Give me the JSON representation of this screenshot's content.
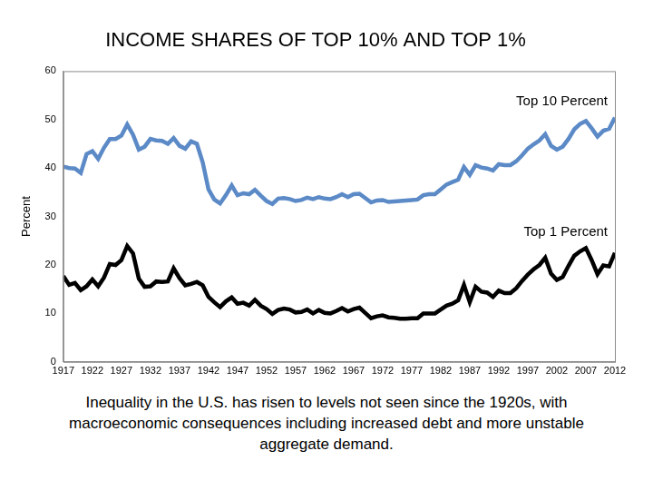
{
  "chart_data": {
    "type": "line",
    "title": "INCOME SHARES OF TOP 10% AND TOP 1%",
    "y_label": "Percent",
    "caption": "Inequality in the U.S. has risen to levels not seen since the 1920s, with macroeconomic consequences including increased debt and more unstable aggregate demand.",
    "x": [
      1917,
      1918,
      1919,
      1920,
      1921,
      1922,
      1923,
      1924,
      1925,
      1926,
      1927,
      1928,
      1929,
      1930,
      1931,
      1932,
      1933,
      1934,
      1935,
      1936,
      1937,
      1938,
      1939,
      1940,
      1941,
      1942,
      1943,
      1944,
      1945,
      1946,
      1947,
      1948,
      1949,
      1950,
      1951,
      1952,
      1953,
      1954,
      1955,
      1956,
      1957,
      1958,
      1959,
      1960,
      1961,
      1962,
      1963,
      1964,
      1965,
      1966,
      1967,
      1968,
      1969,
      1970,
      1971,
      1972,
      1973,
      1974,
      1975,
      1976,
      1977,
      1978,
      1979,
      1980,
      1981,
      1982,
      1983,
      1984,
      1985,
      1986,
      1987,
      1988,
      1989,
      1990,
      1991,
      1992,
      1993,
      1994,
      1995,
      1996,
      1997,
      1998,
      1999,
      2000,
      2001,
      2002,
      2003,
      2004,
      2005,
      2006,
      2007,
      2008,
      2009,
      2010,
      2011,
      2012
    ],
    "series": [
      {
        "name": "Top 10 Percent",
        "color": "#5b8ac7",
        "values": [
          40.3,
          40.0,
          39.9,
          39.0,
          42.9,
          43.5,
          41.9,
          44.2,
          46.0,
          46.0,
          46.7,
          49.0,
          46.9,
          43.8,
          44.4,
          46.0,
          45.7,
          45.6,
          45.0,
          46.2,
          44.6,
          44.0,
          45.5,
          45.0,
          41.2,
          35.6,
          33.5,
          32.7,
          34.4,
          36.4,
          34.4,
          34.8,
          34.6,
          35.5,
          34.3,
          33.2,
          32.6,
          33.7,
          33.8,
          33.6,
          33.2,
          33.4,
          33.9,
          33.6,
          34.0,
          33.7,
          33.6,
          34.0,
          34.6,
          34.0,
          34.6,
          34.7,
          33.8,
          32.9,
          33.3,
          33.4,
          33.0,
          33.1,
          33.2,
          33.3,
          33.4,
          33.5,
          34.4,
          34.6,
          34.6,
          35.6,
          36.6,
          37.1,
          37.6,
          40.2,
          38.6,
          40.6,
          40.1,
          39.9,
          39.5,
          40.8,
          40.6,
          40.6,
          41.4,
          42.6,
          44.0,
          44.9,
          45.7,
          47.0,
          44.6,
          43.8,
          44.4,
          46.0,
          48.0,
          49.1,
          49.7,
          48.2,
          46.5,
          47.7,
          48.1,
          50.4
        ]
      },
      {
        "name": "Top 1 Percent",
        "color": "#000000",
        "values": [
          17.7,
          15.9,
          16.3,
          14.8,
          15.6,
          17.0,
          15.6,
          17.4,
          20.2,
          20.0,
          21.0,
          23.9,
          22.4,
          17.2,
          15.5,
          15.6,
          16.6,
          16.5,
          16.6,
          19.3,
          17.3,
          15.8,
          16.1,
          16.5,
          15.8,
          13.4,
          12.3,
          11.3,
          12.5,
          13.3,
          12.0,
          12.2,
          11.6,
          12.8,
          11.6,
          10.9,
          9.9,
          10.7,
          11.0,
          10.8,
          10.2,
          10.3,
          10.8,
          10.0,
          10.7,
          10.1,
          10.0,
          10.5,
          11.1,
          10.4,
          10.9,
          11.2,
          10.1,
          9.0,
          9.4,
          9.6,
          9.2,
          9.1,
          8.9,
          8.9,
          9.0,
          9.0,
          10.0,
          10.0,
          10.0,
          10.8,
          11.6,
          12.0,
          12.7,
          15.9,
          12.3,
          15.5,
          14.5,
          14.3,
          13.4,
          14.7,
          14.2,
          14.2,
          15.2,
          16.7,
          18.0,
          19.1,
          20.0,
          21.5,
          18.2,
          16.9,
          17.5,
          19.8,
          21.9,
          22.8,
          23.5,
          21.0,
          18.1,
          19.9,
          19.7,
          22.5
        ]
      }
    ],
    "xlim": [
      1917,
      2012
    ],
    "xticks": [
      1917,
      1922,
      1927,
      1932,
      1937,
      1942,
      1947,
      1952,
      1957,
      1962,
      1967,
      1972,
      1977,
      1982,
      1987,
      1992,
      1997,
      2002,
      2007,
      2012
    ],
    "ylim": [
      0,
      60
    ],
    "yticks": [
      0,
      10,
      20,
      30,
      40,
      50,
      60
    ],
    "grid": false
  }
}
